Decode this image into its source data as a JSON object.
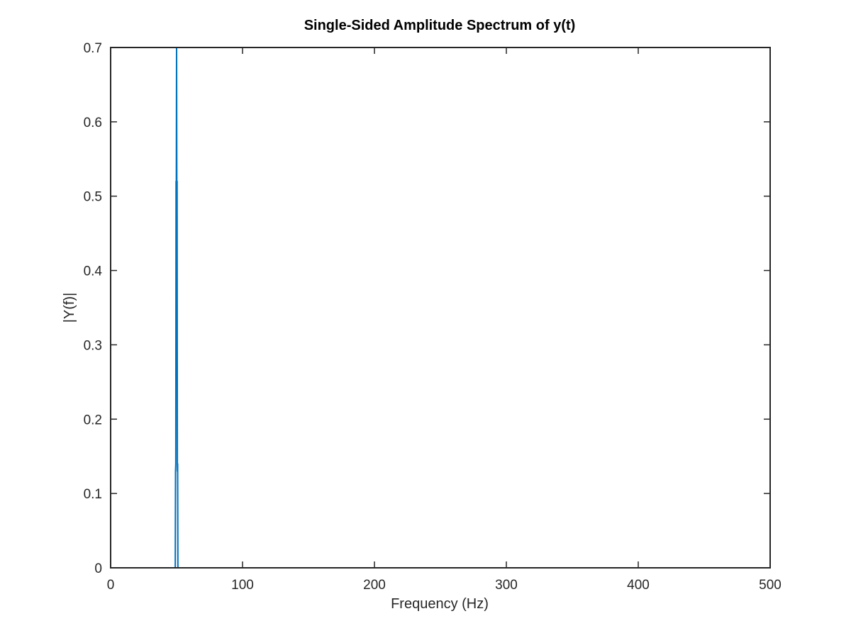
{
  "chart_data": {
    "type": "line",
    "title": "Single-Sided Amplitude Spectrum of y(t)",
    "xlabel": "Frequency (Hz)",
    "ylabel": "|Y(f)|",
    "xlim": [
      0,
      500
    ],
    "ylim": [
      0,
      0.7
    ],
    "xticks": [
      0,
      100,
      200,
      300,
      400,
      500
    ],
    "xtick_labels": [
      "0",
      "100",
      "200",
      "300",
      "400",
      "500"
    ],
    "yticks": [
      0,
      0.1,
      0.2,
      0.3,
      0.4,
      0.5,
      0.6,
      0.7
    ],
    "ytick_labels": [
      "0",
      "0.1",
      "0.2",
      "0.3",
      "0.4",
      "0.5",
      "0.6",
      "0.7"
    ],
    "grid": false,
    "box": true,
    "series": [
      {
        "color": "#0072bd",
        "x": [
          0,
          49,
          49.2,
          49.4,
          49.6,
          49.8,
          50,
          50.2,
          50.4,
          50.6,
          50.8,
          51,
          51.2,
          500
        ],
        "y": [
          0,
          0,
          0.13,
          0.14,
          0.52,
          0.51,
          0.7,
          0.5,
          0.52,
          0.13,
          0.14,
          0,
          0,
          0
        ]
      }
    ]
  }
}
